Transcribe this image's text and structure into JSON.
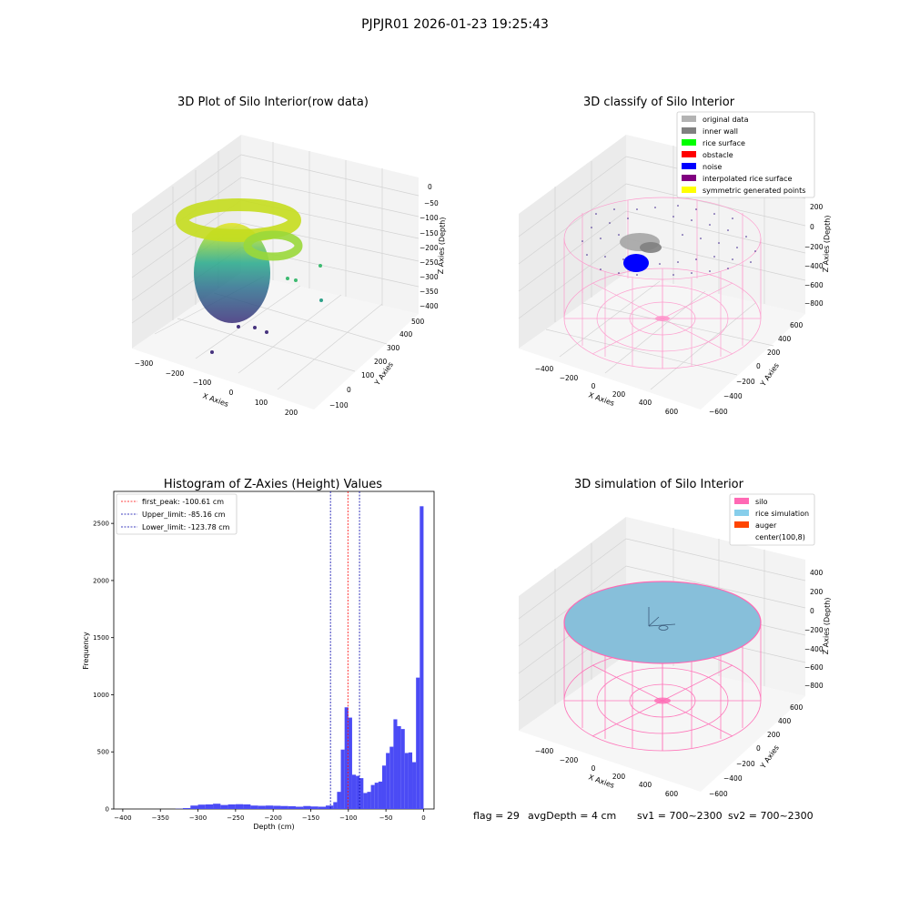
{
  "figure": {
    "suptitle": "PJPJR01 2026-01-23 19:25:43",
    "footer": {
      "flag": "flag = 29",
      "avg_depth": "avgDepth = 4 cm",
      "sv1": "sv1 = 700~2300",
      "sv2": "sv2 = 700~2300"
    }
  },
  "chart_data": [
    {
      "type": "scatter",
      "title": "3D Plot of Silo Interior(row data)",
      "xlabel": "X Axies",
      "ylabel": "Y Axies",
      "zlabel": "Z Axies (Depth)",
      "x_ticks": [
        "−300",
        "−200",
        "−100",
        "0",
        "100",
        "200"
      ],
      "y_ticks": [
        "−100",
        "0",
        "100",
        "200",
        "300",
        "400",
        "500"
      ],
      "z_ticks": [
        "0",
        "−50",
        "−100",
        "−150",
        "−200",
        "−250",
        "−300",
        "−350",
        "−400"
      ],
      "colormap": "viridis",
      "grid": true
    },
    {
      "type": "scatter",
      "title": "3D classify of Silo Interior",
      "xlabel": "X Axies",
      "ylabel": "Y Axies",
      "zlabel": "Z Axies (Depth)",
      "x_ticks": [
        "−400",
        "−200",
        "0",
        "200",
        "400",
        "600"
      ],
      "y_ticks": [
        "−600",
        "−400",
        "−200",
        "0",
        "200",
        "400",
        "600"
      ],
      "z_ticks": [
        "200",
        "0",
        "−200",
        "−400",
        "−600",
        "−800"
      ],
      "legend_position": "top-right",
      "legend": [
        {
          "label": "original data",
          "color": "#b3b3b3"
        },
        {
          "label": "inner wall",
          "color": "#808080"
        },
        {
          "label": "rice surface",
          "color": "#00ff00"
        },
        {
          "label": "obstacle",
          "color": "#ff0000"
        },
        {
          "label": "noise",
          "color": "#0000ff"
        },
        {
          "label": "interpolated rice surface",
          "color": "#800080"
        },
        {
          "label": "symmetric generated points",
          "color": "#ffff00"
        }
      ],
      "grid": true
    },
    {
      "type": "bar",
      "title": "Histogram of Z-Axies (Height) Values",
      "xlabel": "Depth (cm)",
      "ylabel": "Frequency",
      "xlim": [
        -412,
        14
      ],
      "ylim": [
        0,
        2780
      ],
      "x_ticks": [
        -400,
        -350,
        -300,
        -250,
        -200,
        -150,
        -100,
        -50,
        0
      ],
      "y_ticks": [
        0,
        500,
        1000,
        1500,
        2000,
        2500
      ],
      "bar_color": "#4b4bf5",
      "bins": [
        [
          -330,
          -320,
          2
        ],
        [
          -320,
          -310,
          8
        ],
        [
          -310,
          -300,
          30
        ],
        [
          -300,
          -290,
          38
        ],
        [
          -290,
          -280,
          40
        ],
        [
          -280,
          -270,
          46
        ],
        [
          -270,
          -260,
          35
        ],
        [
          -260,
          -250,
          40
        ],
        [
          -250,
          -240,
          42
        ],
        [
          -240,
          -230,
          40
        ],
        [
          -230,
          -220,
          30
        ],
        [
          -220,
          -210,
          28
        ],
        [
          -210,
          -200,
          30
        ],
        [
          -200,
          -190,
          28
        ],
        [
          -190,
          -180,
          26
        ],
        [
          -180,
          -170,
          24
        ],
        [
          -170,
          -160,
          20
        ],
        [
          -160,
          -150,
          26
        ],
        [
          -150,
          -140,
          22
        ],
        [
          -140,
          -130,
          20
        ],
        [
          -130,
          -120,
          30
        ],
        [
          -120,
          -115,
          60
        ],
        [
          -115,
          -110,
          150
        ],
        [
          -110,
          -105,
          520
        ],
        [
          -105,
          -100,
          890
        ],
        [
          -100,
          -95,
          800
        ],
        [
          -95,
          -90,
          300
        ],
        [
          -90,
          -85,
          290
        ],
        [
          -85,
          -80,
          270
        ],
        [
          -80,
          -75,
          140
        ],
        [
          -75,
          -70,
          150
        ],
        [
          -70,
          -65,
          210
        ],
        [
          -65,
          -60,
          230
        ],
        [
          -60,
          -55,
          240
        ],
        [
          -55,
          -50,
          380
        ],
        [
          -50,
          -45,
          490
        ],
        [
          -45,
          -40,
          545
        ],
        [
          -40,
          -35,
          785
        ],
        [
          -35,
          -30,
          725
        ],
        [
          -30,
          -25,
          700
        ],
        [
          -25,
          -20,
          490
        ],
        [
          -20,
          -15,
          495
        ],
        [
          -15,
          -10,
          410
        ],
        [
          -10,
          -5,
          1150
        ],
        [
          -5,
          0,
          2650
        ]
      ],
      "reference_lines": [
        {
          "label": "first_peak: -100.61 cm",
          "x": -100.61,
          "color": "#ff0000"
        },
        {
          "label": "Upper_limit: -85.16 cm",
          "x": -85.16,
          "color": "#0000aa"
        },
        {
          "label": "Lower_limit: -123.78 cm",
          "x": -123.78,
          "color": "#0000aa"
        }
      ],
      "legend_position": "top-left"
    },
    {
      "type": "scatter",
      "title": "3D simulation of Silo Interior",
      "xlabel": "X Axies",
      "ylabel": "Y Axies",
      "zlabel": "Z Axies (Depth)",
      "x_ticks": [
        "−400",
        "−200",
        "0",
        "200",
        "400",
        "600"
      ],
      "y_ticks": [
        "−600",
        "−400",
        "−200",
        "0",
        "200",
        "400",
        "600"
      ],
      "z_ticks": [
        "400",
        "200",
        "0",
        "−200",
        "−400",
        "−600",
        "−800"
      ],
      "legend_position": "top-right",
      "legend": [
        {
          "label": "silo",
          "color": "#ff69b4"
        },
        {
          "label": "rice simulation",
          "color": "#87ceeb"
        },
        {
          "label": "auger",
          "color": "#ff4500"
        },
        {
          "label": "center(100,8)",
          "color": "#ffffff"
        }
      ],
      "grid": true
    }
  ]
}
